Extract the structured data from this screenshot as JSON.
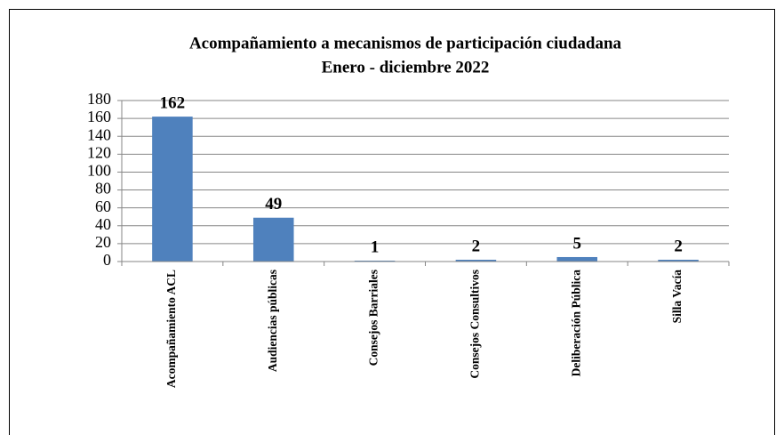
{
  "chart_data": {
    "type": "bar",
    "title": "Acompañamiento a mecanismos de participación ciudadana",
    "subtitle": "Enero - diciembre 2022",
    "categories": [
      "Acompañamiento ACL",
      "Audiencias públicas",
      "Consejos Barriales",
      "Consejos Consultivos",
      "Deliberación Pública",
      "Silla Vacía"
    ],
    "values": [
      162,
      49,
      1,
      2,
      5,
      2
    ],
    "color": "#4f81bd",
    "ylim": [
      0,
      180
    ],
    "yticks": [
      0,
      20,
      40,
      60,
      80,
      100,
      120,
      140,
      160,
      180
    ],
    "grid": true
  }
}
